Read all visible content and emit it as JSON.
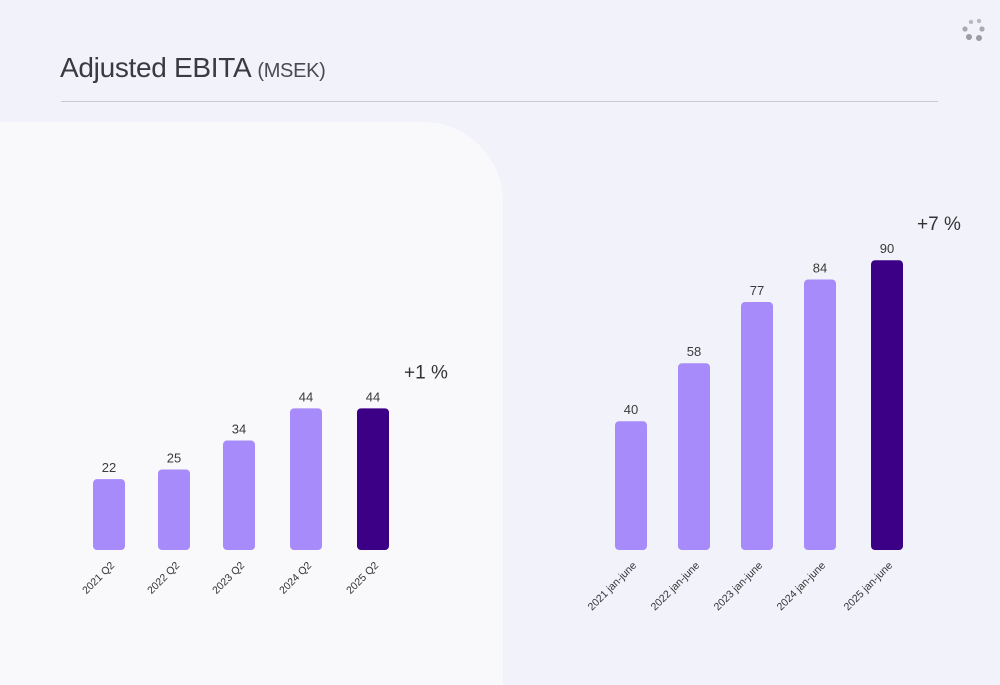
{
  "title": "Adjusted EBITA",
  "unit": "(MSEK)",
  "colors": {
    "bar": "#a78bfa",
    "highlight": "#3b0086",
    "background": "#f2f2fb",
    "panel": "#f9f9fc"
  },
  "icons": {
    "logo": "dots-logo-icon"
  },
  "chart_data": [
    {
      "type": "bar",
      "title": "",
      "xlabel": "",
      "ylabel": "",
      "categories": [
        "2021 Q2",
        "2022 Q2",
        "2023 Q2",
        "2024 Q2",
        "2025 Q2"
      ],
      "values": [
        22,
        25,
        34,
        44,
        44
      ],
      "value_labels": [
        "22",
        "25",
        "34",
        "44",
        "44"
      ],
      "highlight_index": 4,
      "growth_label": "+1 %",
      "ylim": [
        0,
        90
      ],
      "grid": false,
      "legend": "none"
    },
    {
      "type": "bar",
      "title": "",
      "xlabel": "",
      "ylabel": "",
      "categories": [
        "2021 jan-june",
        "2022 jan-june",
        "2023 jan-june",
        "2024 jan-june",
        "2025 jan-june"
      ],
      "values": [
        40,
        58,
        77,
        84,
        90
      ],
      "value_labels": [
        "40",
        "58",
        "77",
        "84",
        "90"
      ],
      "highlight_index": 4,
      "growth_label": "+7 %",
      "ylim": [
        0,
        90
      ],
      "grid": false,
      "legend": "none"
    }
  ]
}
